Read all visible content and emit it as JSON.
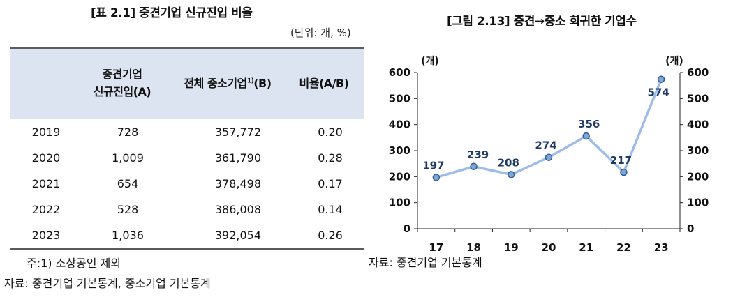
{
  "table": {
    "title": "[표 2.1] 중견기업 신규진입 비율",
    "unit": "(단위: 개, %)",
    "headers": {
      "col1_line1": "중견기업",
      "col1_line2": "신규진입(A)",
      "col2": "전체 중소기업",
      "col2_sup": "1)",
      "col2_suffix": "(B)",
      "col3": "비율(A/B)"
    },
    "rows": [
      {
        "year": "2019",
        "a": "728",
        "b": "357,772",
        "ratio": "0.20"
      },
      {
        "year": "2020",
        "a": "1,009",
        "b": "361,790",
        "ratio": "0.28"
      },
      {
        "year": "2021",
        "a": "654",
        "b": "378,498",
        "ratio": "0.17"
      },
      {
        "year": "2022",
        "a": "528",
        "b": "386,008",
        "ratio": "0.14"
      },
      {
        "year": "2023",
        "a": "1,036",
        "b": "392,054",
        "ratio": "0.26"
      }
    ],
    "note": "주:1) 소상공인 제외",
    "source": "자료: 중견기업 기본통계, 중소기업 기본통계"
  },
  "chart_data": {
    "type": "line",
    "title": "[그림 2.13] 중견→중소 회귀한 기업수",
    "categories": [
      "17",
      "18",
      "19",
      "20",
      "21",
      "22",
      "23"
    ],
    "series": [
      {
        "values": [
          197,
          239,
          208,
          274,
          356,
          217,
          574
        ]
      }
    ],
    "ylim": [
      0,
      600
    ],
    "yticks": [
      0,
      100,
      200,
      300,
      400,
      500,
      600
    ],
    "ylabel_left": "(개)",
    "ylabel_right": "(개)",
    "secondary_axis": true,
    "grid": false,
    "line_color": "#9dbde6",
    "marker_color": "#7fa7d6",
    "label_color": "#1f3b64",
    "source": "자료: 중견기업 기본통계"
  }
}
